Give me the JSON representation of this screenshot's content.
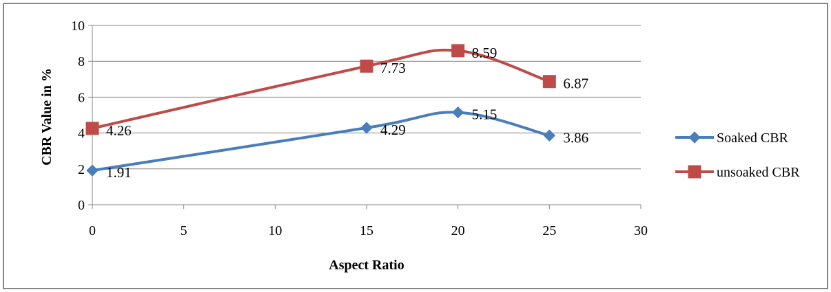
{
  "chart_data": {
    "type": "line",
    "xlabel": "Aspect Ratio",
    "ylabel": "CBR Value in %",
    "xlim": [
      0,
      30
    ],
    "ylim": [
      0,
      10
    ],
    "x_ticks": [
      0,
      5,
      10,
      15,
      20,
      25,
      30
    ],
    "y_ticks": [
      0,
      2,
      4,
      6,
      8,
      10
    ],
    "grid": "horizontal",
    "legend_position": "right",
    "series": [
      {
        "name": "Soaked CBR",
        "color": "#4a7ebb",
        "marker": "diamond",
        "x": [
          0,
          15,
          20,
          25
        ],
        "y": [
          1.91,
          4.29,
          5.15,
          3.86
        ],
        "labels": [
          "1.91",
          "4.29",
          "5.15",
          "3.86"
        ]
      },
      {
        "name": "unsoaked CBR",
        "color": "#be4b48",
        "marker": "square",
        "x": [
          0,
          15,
          20,
          25
        ],
        "y": [
          4.26,
          7.73,
          8.59,
          6.87
        ],
        "labels": [
          "4.26",
          "7.73",
          "8.59",
          "6.87"
        ]
      }
    ]
  }
}
